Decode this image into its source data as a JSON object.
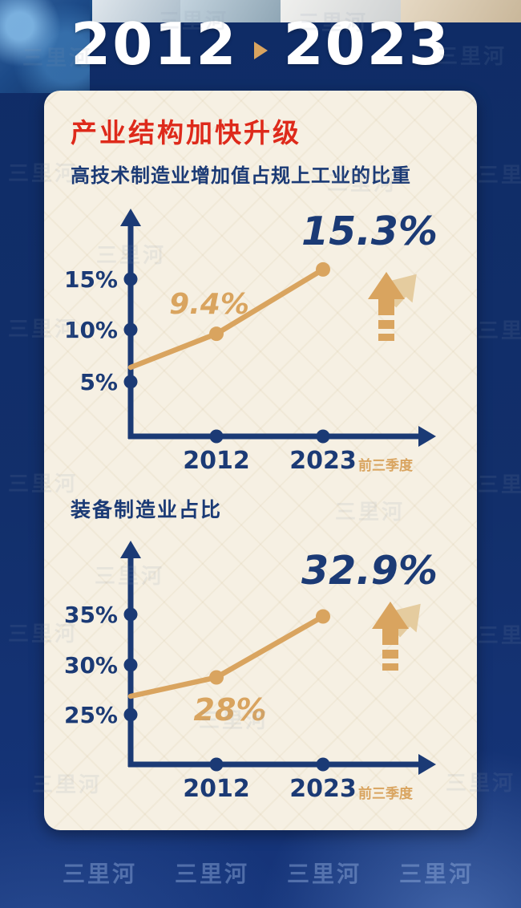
{
  "colors": {
    "navy": "#1B3A75",
    "gold": "#D9A45F",
    "gold_light": "#E5CC9F",
    "red": "#DE2A1B",
    "card_bg": "#F6F0E3",
    "background": "#122F6B"
  },
  "watermark": "三里河",
  "header": {
    "year_from": "2012",
    "year_to": "2023"
  },
  "card": {
    "title": "产业结构加快升级"
  },
  "chart_data": [
    {
      "type": "line",
      "title": "高技术制造业增加值占规上工业的比重",
      "categories": [
        "2012",
        "2023"
      ],
      "category_suffix": "前三季度",
      "values": [
        9.4,
        15.3
      ],
      "data_labels": [
        "9.4%",
        "15.3%"
      ],
      "yticks": [
        "5%",
        "10%",
        "15%"
      ],
      "ylim": [
        0,
        18
      ],
      "unit": "%",
      "trend": "up",
      "legend": false,
      "grid": false
    },
    {
      "type": "line",
      "title": "装备制造业占比",
      "categories": [
        "2012",
        "2023"
      ],
      "category_suffix": "前三季度",
      "values": [
        28,
        32.9
      ],
      "data_labels": [
        "28%",
        "32.9%"
      ],
      "yticks": [
        "25%",
        "30%",
        "35%"
      ],
      "ylim": [
        24,
        37
      ],
      "unit": "%",
      "trend": "up",
      "legend": false,
      "grid": false
    }
  ]
}
